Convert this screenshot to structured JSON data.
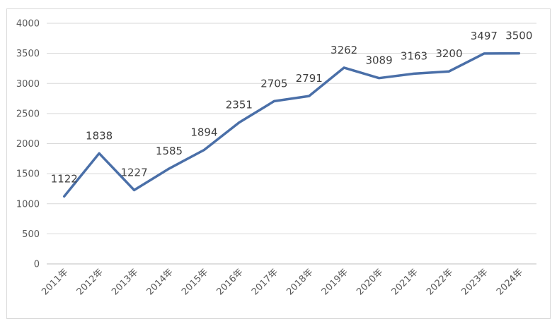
{
  "chart_data": {
    "type": "line",
    "title": "",
    "xlabel": "",
    "ylabel": "",
    "ylim": [
      0,
      4000
    ],
    "yticks": [
      0,
      500,
      1000,
      1500,
      2000,
      2500,
      3000,
      3500,
      4000
    ],
    "grid": true,
    "legend": "none",
    "categories": [
      "2011年",
      "2012年",
      "2013年",
      "2014年",
      "2015年",
      "2016年",
      "2017年",
      "2018年",
      "2019年",
      "2020年",
      "2021年",
      "2022年",
      "2023年",
      "2024年"
    ],
    "series": [
      {
        "name": "",
        "color": "#4a6fa8",
        "values": [
          1122,
          1838,
          1227,
          1585,
          1894,
          2351,
          2705,
          2791,
          3262,
          3089,
          3163,
          3200,
          3497,
          3500
        ]
      }
    ]
  }
}
